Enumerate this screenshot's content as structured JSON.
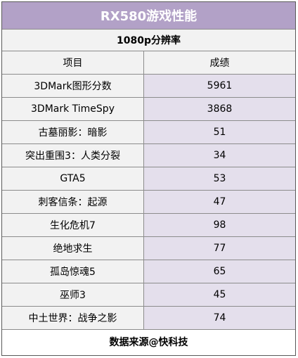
{
  "title": "RX580游戏性能",
  "subtitle": "1080p分辨率",
  "columns": [
    "项目",
    "成绩"
  ],
  "rows": [
    {
      "item": "3DMark图形分数",
      "score": "5961"
    },
    {
      "item": "3DMark TimeSpy",
      "score": "3868"
    },
    {
      "item": "古墓丽影：暗影",
      "score": "51"
    },
    {
      "item": "突出重围3：人类分裂",
      "score": "34"
    },
    {
      "item": "GTA5",
      "score": "53"
    },
    {
      "item": "刺客信条：起源",
      "score": "47"
    },
    {
      "item": "生化危机7",
      "score": "98"
    },
    {
      "item": "绝地求生",
      "score": "77"
    },
    {
      "item": "孤岛惊魂5",
      "score": "65"
    },
    {
      "item": "巫师3",
      "score": "45"
    },
    {
      "item": "中土世界：战争之影",
      "score": "74"
    }
  ],
  "footer": "数据来源@快科技",
  "colors": {
    "title_bg": "#b2a1c7",
    "label_bg": "#f2f2f2",
    "value_bg": "#e4dfec",
    "border": "#8c8c8c"
  }
}
